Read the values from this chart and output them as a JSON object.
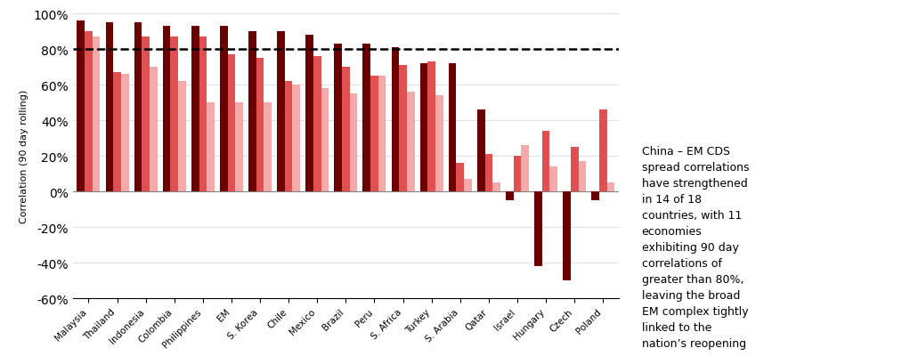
{
  "categories": [
    "Malaysia",
    "Thailand",
    "Indonesia",
    "Colombia",
    "Philippines",
    "EM",
    "S. Korea",
    "Chile",
    "Mexico",
    "Brazil",
    "Peru",
    "S. Africa",
    "Turkey",
    "S. Arabia",
    "Qatar",
    "Israel",
    "Hungary",
    "Czech",
    "Poland"
  ],
  "latest": [
    96,
    95,
    95,
    93,
    93,
    93,
    90,
    90,
    88,
    83,
    83,
    81,
    72,
    72,
    46,
    -5,
    -42,
    -50,
    -5
  ],
  "six_month": [
    90,
    67,
    87,
    87,
    87,
    77,
    75,
    62,
    76,
    70,
    65,
    71,
    73,
    16,
    21,
    20,
    34,
    25,
    46
  ],
  "two_year": [
    87,
    66,
    70,
    62,
    50,
    50,
    50,
    60,
    58,
    55,
    65,
    56,
    54,
    7,
    5,
    26,
    14,
    17,
    5
  ],
  "color_latest": "#6B0000",
  "color_6month": "#E05050",
  "color_2year": "#F4AAAA",
  "dashed_line_y": 80,
  "ylabel": "Correlation (90 day rolling)",
  "ylim_min": -60,
  "ylim_max": 100,
  "yticks": [
    -60,
    -40,
    -20,
    0,
    20,
    40,
    60,
    80,
    100
  ],
  "annotation": "China – EM CDS\nspread correlations\nhave strengthened\nin 14 of 18\ncountries, with 11\neconomies\nexhibiting 90 day\ncorrelations of\ngreater than 80%,\nleaving the broad\nEM complex tightly\nlinked to the\nnation’s reopening"
}
